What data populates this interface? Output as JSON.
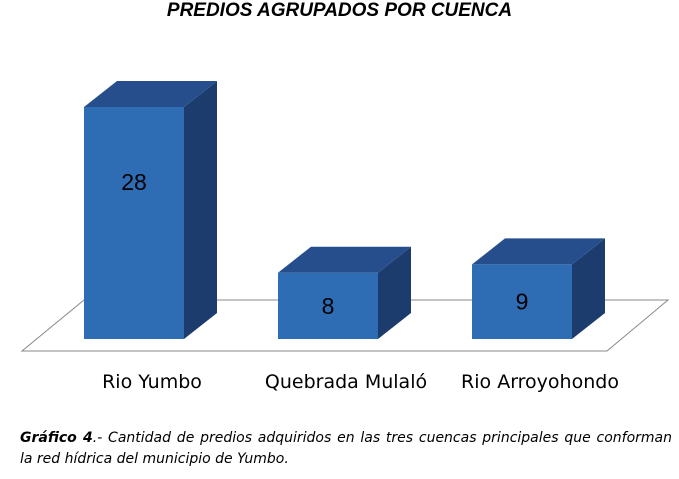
{
  "chart_data": {
    "type": "bar",
    "title": "PREDIOS AGRUPADOS POR CUENCA",
    "categories": [
      "Rio Yumbo",
      "Quebrada Mulaló",
      "Rio Arroyohondo"
    ],
    "values": [
      28,
      8,
      9
    ],
    "ylim": [
      0,
      28
    ],
    "grid": false,
    "legend": "none",
    "colors": {
      "front": "#2E6DB4",
      "side": "#1D3C6E",
      "top": "#264E8C",
      "floor_stroke": "#888888",
      "label": "#000000"
    }
  },
  "caption": {
    "label": "Gráfico 4",
    "text": ".- Cantidad de predios adquiridos en las tres cuencas principales que conforman la red hídrica del municipio de Yumbo."
  }
}
